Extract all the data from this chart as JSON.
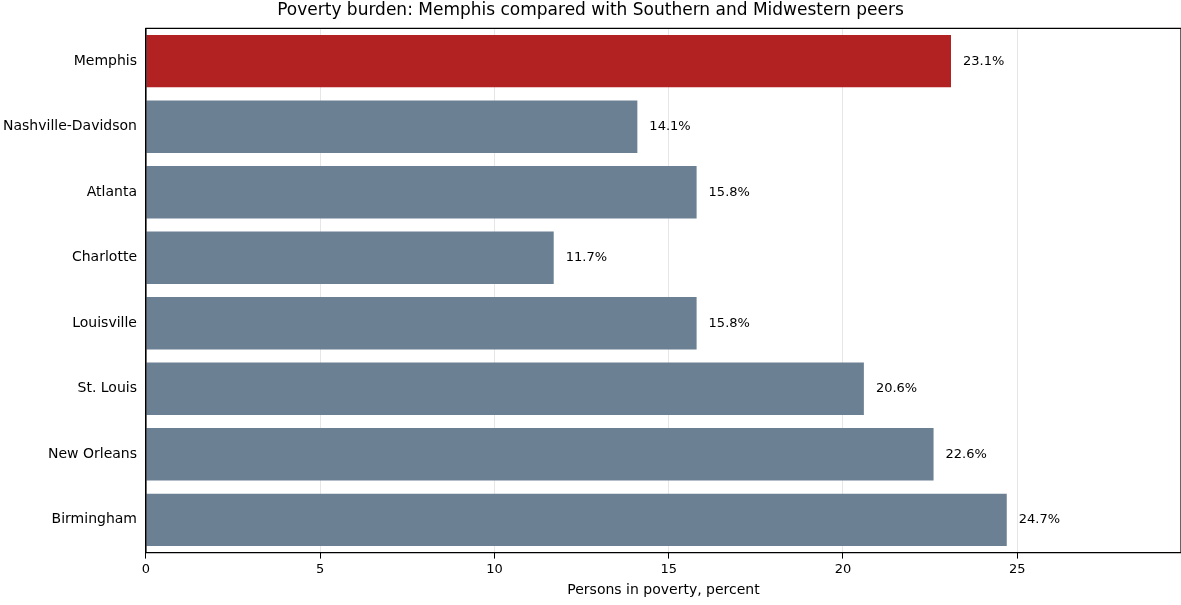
{
  "chart_data": {
    "type": "bar",
    "orientation": "horizontal",
    "title": "Poverty burden: Memphis compared with Southern and Midwestern peers",
    "xlabel": "Persons in poverty, percent",
    "categories": [
      "Memphis",
      "Nashville-Davidson",
      "Atlanta",
      "Charlotte",
      "Louisville",
      "St. Louis",
      "New Orleans",
      "Birmingham"
    ],
    "values": [
      23.1,
      14.1,
      15.8,
      11.7,
      15.8,
      20.6,
      22.6,
      24.7
    ],
    "colors": [
      "#b22222",
      "#6b8093",
      "#6b8093",
      "#6b8093",
      "#6b8093",
      "#6b8093",
      "#6b8093",
      "#6b8093"
    ],
    "value_labels": [
      "23.1%",
      "14.1%",
      "15.8%",
      "11.7%",
      "15.8%",
      "20.6%",
      "22.6%",
      "24.7%"
    ],
    "xlim": [
      0,
      29.7
    ],
    "xticks": [
      0,
      5,
      10,
      15,
      20,
      25
    ],
    "grid": "x",
    "legend": false
  }
}
